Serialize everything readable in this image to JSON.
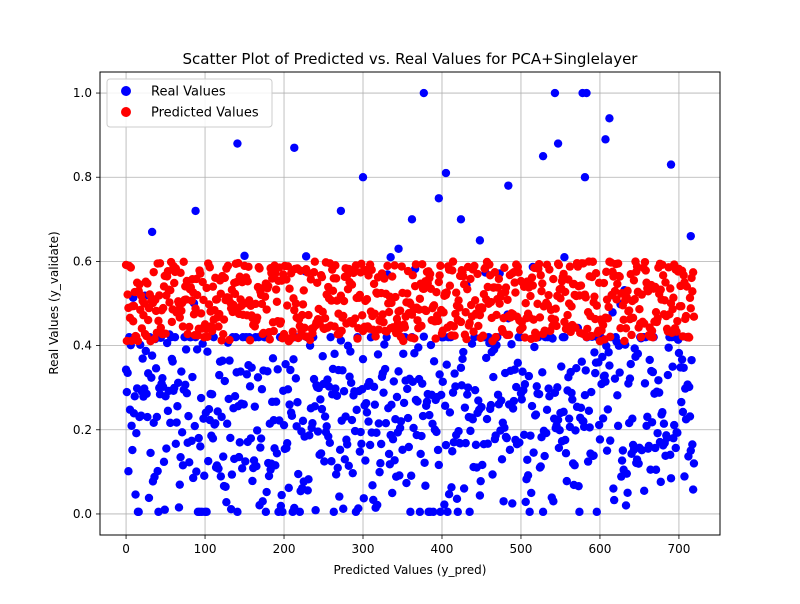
{
  "chart_data": {
    "type": "scatter",
    "title": "Scatter Plot of Predicted vs. Real Values for PCA+Singlelayer",
    "xlabel": "Predicted Values (y_pred)",
    "ylabel": "Real Values (y_validate)",
    "xlim": [
      -33,
      752
    ],
    "ylim": [
      -0.05,
      1.05
    ],
    "x_ticks": [
      "0",
      "100",
      "200",
      "300",
      "400",
      "500",
      "600",
      "700"
    ],
    "y_ticks": [
      "0.0",
      "0.2",
      "0.4",
      "0.6",
      "0.8",
      "1.0"
    ],
    "grid": true,
    "legend": "top-left",
    "n_points": 720,
    "series": [
      {
        "name": "Real Values",
        "color": "#0000ff",
        "notable_points": [
          [
            33,
            0.67
          ],
          [
            88,
            0.72
          ],
          [
            141,
            0.88
          ],
          [
            213,
            0.87
          ],
          [
            272,
            0.72
          ],
          [
            300,
            0.8
          ],
          [
            335,
            0.61
          ],
          [
            345,
            0.63
          ],
          [
            362,
            0.7
          ],
          [
            377,
            1.0
          ],
          [
            396,
            0.75
          ],
          [
            405,
            0.81
          ],
          [
            424,
            0.7
          ],
          [
            448,
            0.65
          ],
          [
            484,
            0.78
          ],
          [
            528,
            0.85
          ],
          [
            543,
            1.0
          ],
          [
            547,
            0.88
          ],
          [
            555,
            0.61
          ],
          [
            578,
            1.0
          ],
          [
            581,
            0.8
          ],
          [
            583,
            1.0
          ],
          [
            607,
            0.89
          ],
          [
            612,
            0.94
          ],
          [
            690,
            0.83
          ],
          [
            715,
            0.66
          ]
        ]
      },
      {
        "name": "Predicted Values",
        "color": "#ff0000",
        "value_range": [
          0.41,
          0.6
        ]
      }
    ]
  }
}
